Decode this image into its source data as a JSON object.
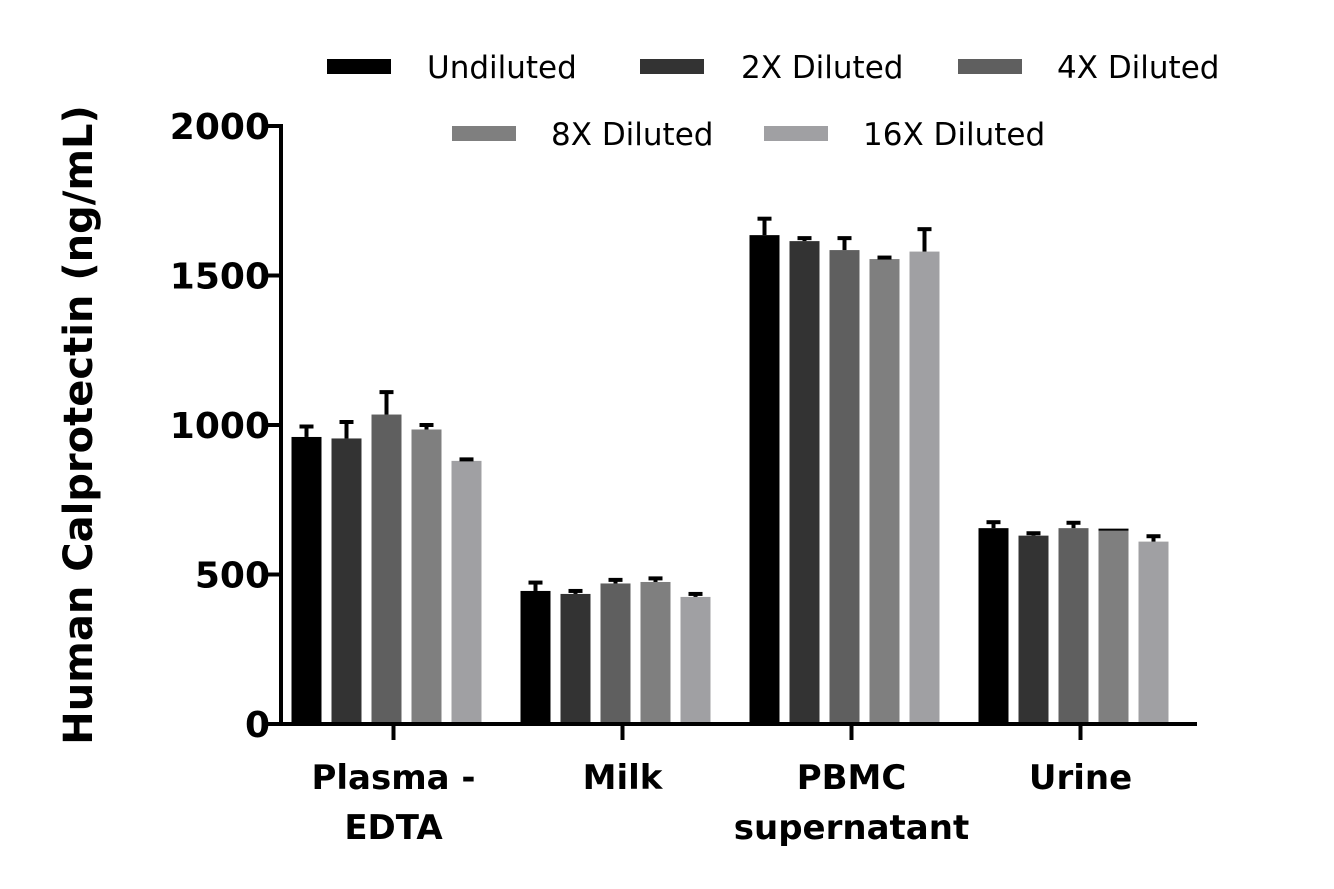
{
  "chart_data": {
    "type": "bar",
    "ylabel": "Human Calprotectin (ng/mL)",
    "xlabel": "",
    "ylim": [
      0,
      2000
    ],
    "yticks": [
      "0",
      "500",
      "1000",
      "1500",
      "2000"
    ],
    "categories": [
      [
        "Plasma -",
        "EDTA"
      ],
      [
        "Milk"
      ],
      [
        "PBMC",
        "supernatant"
      ],
      [
        "Urine"
      ]
    ],
    "series": [
      {
        "name": "Undiluted",
        "color": "#000000",
        "values": [
          960,
          445,
          1635,
          655
        ],
        "errors": [
          35,
          28,
          55,
          20
        ]
      },
      {
        "name": "2X Diluted",
        "color": "#333333",
        "values": [
          955,
          435,
          1615,
          630
        ],
        "errors": [
          55,
          10,
          10,
          8
        ]
      },
      {
        "name": "4X Diluted",
        "color": "#5f5f5f",
        "values": [
          1035,
          470,
          1585,
          655
        ],
        "errors": [
          75,
          12,
          40,
          18
        ]
      },
      {
        "name": "8X Diluted",
        "color": "#7f7f7f",
        "values": [
          985,
          475,
          1555,
          650
        ],
        "errors": [
          15,
          12,
          5,
          0
        ]
      },
      {
        "name": "16X Diluted",
        "color": "#a0a0a3",
        "values": [
          880,
          425,
          1580,
          610
        ],
        "errors": [
          5,
          10,
          75,
          18
        ]
      }
    ],
    "legend_position": "top"
  }
}
